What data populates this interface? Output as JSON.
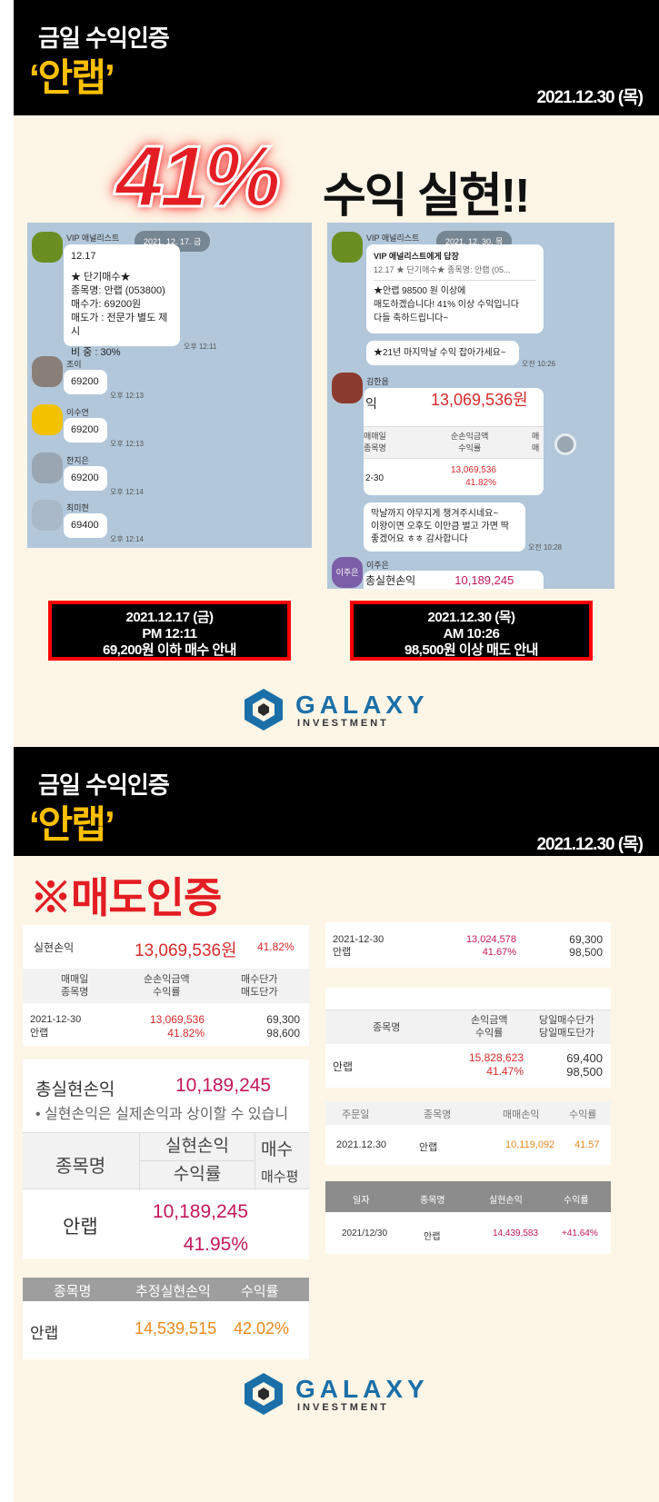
{
  "top": {
    "title1": "금일 수익인증",
    "title2": "‘안랩’",
    "date": "2021.12.30 (목)"
  },
  "hero": {
    "pct": "41%",
    "text": "수익 실현!!"
  },
  "chat1": {
    "date_pill": "2021. 12. 17. 금",
    "sender": "VIP 애널리스트",
    "msg": [
      "12.17",
      "",
      "★ 단기매수★",
      "종목명: 안랩 (053800)",
      "매수가: 69200원",
      "매도가 : 전문가 별도 제시",
      "",
      "비   중 : 30%"
    ],
    "msg_time": "오후 12:11",
    "replies": [
      {
        "name": "조이",
        "text": "69200",
        "time": "오후 12:13"
      },
      {
        "name": "이수연",
        "text": "69200",
        "time": "오후 12:13"
      },
      {
        "name": "한지은",
        "text": "69200",
        "time": "오후 12:14"
      },
      {
        "name": "최미현",
        "text": "69400",
        "time": "오후 12:14"
      }
    ]
  },
  "chat2": {
    "date_pill": "2021. 12. 30. 목",
    "sender": "VIP 애널리스트",
    "reply_title": "VIP 애널리스트에게 답장",
    "reply_quote": "12.17 ★ 단기매수★ 종목명: 안랩 (05...",
    "msg": [
      "★안랩 98500 원 이상에",
      "매도하겠습니다! 41% 이상 수익입니다",
      "다들 축하드립니다~"
    ],
    "msg2": "★21년 마지막날 수익 잡아가세요~",
    "msg2_time": "오전 10:26",
    "user1": "김한음",
    "amount": "13,069,536원",
    "amount_prefix": "익",
    "col1": [
      "매매일",
      "종목명"
    ],
    "col2": [
      "순손익금액",
      "수익률"
    ],
    "col3": [
      "매",
      "매"
    ],
    "row_date": "2-30",
    "row_amt": "13,069,536",
    "row_pct": "41.82%",
    "msg3": [
      "막날까지 야무지게 챙겨주시네요~",
      "이왕이면 오후도 이만큼 벌고 가면 딱",
      "좋겠어요 ㅎㅎ 감사합니다"
    ],
    "msg3_time": "오전 10:28",
    "user2": "이주은",
    "avatar2": "이주은",
    "total_label": "총실현손익",
    "total_value": "10,189,245"
  },
  "box1": [
    "2021.12.17 (금)",
    "PM 12:11",
    "69,200원 이하  매수 안내"
  ],
  "box2": [
    "2021.12.30 (목)",
    "AM 10:26",
    "98,500원 이상 매도 안내"
  ],
  "logo": {
    "name": "GALAXY",
    "sub": "INVESTMENT"
  },
  "bottom": {
    "title1": "금일 수익인증",
    "title2": "‘안랩’",
    "date": "2021.12.30 (목)",
    "sell_title": "※매도인증"
  },
  "p1": {
    "label": "실현손익",
    "amount": "13,069,536원",
    "pct": "41.82%",
    "h1": [
      "매매일",
      "종목명"
    ],
    "h2": [
      "순손익금액",
      "수익률"
    ],
    "h3": [
      "매수단가",
      "매도단가"
    ],
    "date": "2021-12-30",
    "stock": "안랩",
    "amt": "13,069,536",
    "rpct": "41.82%",
    "buy": "69,300",
    "sell": "98,600"
  },
  "p2": {
    "label": "총실현손익",
    "value": "10,189,245",
    "note": "• 실현손익은 실제손익과 상이할 수 있습니",
    "h1": "종목명",
    "h2a": "실현손익",
    "h2b": "수익률",
    "h3a": "매수",
    "h3b": "매수평",
    "stock": "안랩",
    "amt": "10,189,245",
    "pct": "41.95%"
  },
  "p3": {
    "h1": "종목명",
    "h2": "추정실현손익",
    "h3": "수익률",
    "stock": "안랩",
    "amt": "14,539,515",
    "pct": "42.02%"
  },
  "p4": {
    "date": "2021-12-30",
    "stock": "안랩",
    "amt": "13,024,578",
    "pct": "41.67%",
    "buy": "69,300",
    "sell": "98,500"
  },
  "p5": {
    "h1": "종목명",
    "h2": [
      "손익금액",
      "수익률"
    ],
    "h3": [
      "당일매수단가",
      "당일매도단가"
    ],
    "stock": "안랩",
    "amt": "15,828,623",
    "pct": "41.47%",
    "buy": "69,400",
    "sell": "98,500"
  },
  "p6": {
    "h": [
      "주문일",
      "종목명",
      "매매손익",
      "수익률"
    ],
    "r": [
      "2021.12.30",
      "안랩",
      "10,119,092",
      "41.57"
    ]
  },
  "p7": {
    "h": [
      "일자",
      "종목명",
      "실현손익",
      "수익률"
    ],
    "r": [
      "2021/12/30",
      "안랩",
      "14,439,583",
      "+41.64%"
    ]
  }
}
